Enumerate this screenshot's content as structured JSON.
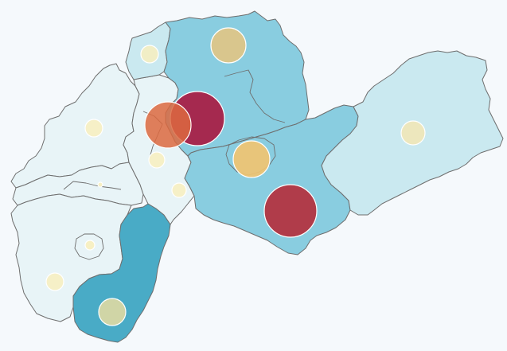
{
  "map": {
    "colors": {
      "background": "#f5f9fc",
      "border": "#6e6e6e",
      "level_lightest": "#e8f4f7",
      "level_light": "#cae9f0",
      "level_mid": "#89cde0",
      "level_dark": "#49abc6"
    },
    "regions": [
      {
        "name": "region-west-north",
        "level": "lightest"
      },
      {
        "name": "region-west-middle",
        "level": "lightest"
      },
      {
        "name": "region-west-south",
        "level": "lightest"
      },
      {
        "name": "region-south-dark",
        "level": "dark"
      },
      {
        "name": "region-central-west",
        "level": "lightest"
      },
      {
        "name": "region-north-small",
        "level": "light"
      },
      {
        "name": "region-north-large",
        "level": "mid"
      },
      {
        "name": "region-central-south",
        "level": "mid"
      },
      {
        "name": "region-east",
        "level": "light"
      }
    ],
    "bubbles": [
      {
        "name": "bubble-north",
        "size": "large",
        "color": "#e8c47e"
      },
      {
        "name": "bubble-northwest-small",
        "size": "small",
        "color": "#f8efbe"
      },
      {
        "name": "bubble-center-crimson",
        "size": "xlarge",
        "color": "#a8173f"
      },
      {
        "name": "bubble-center-orange",
        "size": "large",
        "color": "#dc6840"
      },
      {
        "name": "bubble-west",
        "size": "small",
        "color": "#f8efbe"
      },
      {
        "name": "bubble-central-small",
        "size": "small",
        "color": "#f8efbe"
      },
      {
        "name": "bubble-central-tiny",
        "size": "small",
        "color": "#f8efbe"
      },
      {
        "name": "bubble-center-gold",
        "size": "large",
        "color": "#f3c46f"
      },
      {
        "name": "bubble-south-red",
        "size": "xlarge",
        "color": "#b52c3a"
      },
      {
        "name": "bubble-east",
        "size": "medium",
        "color": "#f3e6b4"
      },
      {
        "name": "bubble-southwest-speck",
        "size": "tiny",
        "color": "#f8efbe"
      },
      {
        "name": "bubble-southwest-small",
        "size": "small",
        "color": "#f8efbe"
      },
      {
        "name": "bubble-southwest",
        "size": "small",
        "color": "#f8efbe"
      },
      {
        "name": "bubble-south-olive",
        "size": "medium",
        "color": "#dfd9a2"
      }
    ]
  }
}
